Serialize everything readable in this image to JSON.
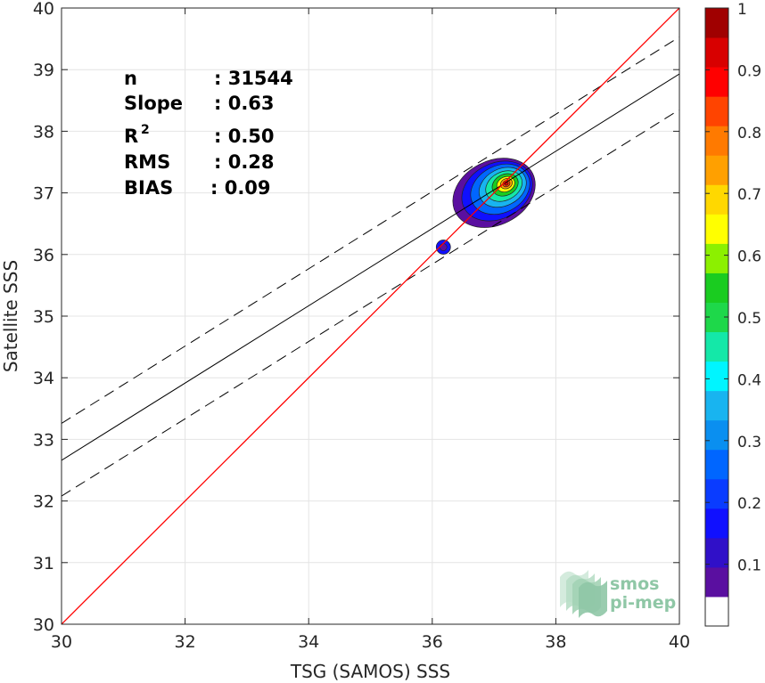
{
  "chart_data": {
    "type": "heatmap",
    "title": "",
    "xlabel": "TSG (SAMOS) SSS",
    "ylabel": "Satellite SSS",
    "xlim": [
      30,
      40
    ],
    "ylim": [
      30,
      40
    ],
    "x_ticks": [
      "30",
      "32",
      "34",
      "36",
      "38",
      "40"
    ],
    "y_ticks": [
      "30",
      "31",
      "32",
      "33",
      "34",
      "35",
      "36",
      "37",
      "38",
      "39",
      "40"
    ],
    "grid": true,
    "stats": [
      {
        "label": "n",
        "sup": "",
        "value": ": 31544"
      },
      {
        "label": "Slope",
        "sup": "",
        "value": ": 0.63"
      },
      {
        "label": "R",
        "sup": "2",
        "value": ": 0.50"
      },
      {
        "label": "RMS",
        "sup": "",
        "value": ": 0.28"
      },
      {
        "label": "BIAS",
        "sup": "",
        "value": ": 0.09"
      }
    ],
    "identity_line": {
      "x": [
        30,
        40
      ],
      "y": [
        30,
        40
      ],
      "color": "#ff0000"
    },
    "regression_line": {
      "x": [
        30,
        40
      ],
      "y": [
        32.66,
        38.93
      ],
      "color": "#000000"
    },
    "confidence_bounds": [
      {
        "x": [
          30,
          40
        ],
        "y": [
          33.26,
          39.53
        ],
        "style": "dashed"
      },
      {
        "x": [
          30,
          40
        ],
        "y": [
          32.08,
          38.35
        ],
        "style": "dashed"
      }
    ],
    "density_peak": {
      "x": 37.2,
      "y": 37.15,
      "value": 1.0
    },
    "density_contours": [
      {
        "level": 0.05,
        "cx": 37.0,
        "cy": 37.0,
        "rx": 0.7,
        "ry": 0.52,
        "rot": 0.6
      },
      {
        "level": 0.15,
        "cx": 37.05,
        "cy": 37.03,
        "rx": 0.6,
        "ry": 0.45,
        "rot": 0.6
      },
      {
        "level": 0.25,
        "cx": 37.1,
        "cy": 37.06,
        "rx": 0.5,
        "ry": 0.38,
        "rot": 0.6
      },
      {
        "level": 0.35,
        "cx": 37.14,
        "cy": 37.09,
        "rx": 0.4,
        "ry": 0.3,
        "rot": 0.6
      },
      {
        "level": 0.45,
        "cx": 37.16,
        "cy": 37.11,
        "rx": 0.31,
        "ry": 0.23,
        "rot": 0.6
      },
      {
        "level": 0.55,
        "cx": 37.18,
        "cy": 37.13,
        "rx": 0.22,
        "ry": 0.17,
        "rot": 0.6
      },
      {
        "level": 0.65,
        "cx": 37.19,
        "cy": 37.14,
        "rx": 0.15,
        "ry": 0.12,
        "rot": 0.6
      },
      {
        "level": 0.75,
        "cx": 37.2,
        "cy": 37.15,
        "rx": 0.1,
        "ry": 0.08,
        "rot": 0.6
      },
      {
        "level": 0.85,
        "cx": 37.2,
        "cy": 37.15,
        "rx": 0.06,
        "ry": 0.05,
        "rot": 0.6
      },
      {
        "level": 0.95,
        "cx": 37.2,
        "cy": 37.15,
        "rx": 0.03,
        "ry": 0.025,
        "rot": 0.6
      }
    ],
    "secondary_blob": {
      "x": 36.18,
      "y": 36.12,
      "level": 0.15
    },
    "colorbar": {
      "min": 0,
      "max": 1,
      "ticks": [
        "0.1",
        "0.2",
        "0.3",
        "0.4",
        "0.5",
        "0.6",
        "0.7",
        "0.8",
        "0.9",
        "1"
      ],
      "colors": [
        "#ffffff",
        "#5a0fa0",
        "#3010c8",
        "#1010ff",
        "#0a3cff",
        "#0066ff",
        "#0a8ff0",
        "#18b4f0",
        "#00f5ff",
        "#14e8a8",
        "#1ed84a",
        "#1acc20",
        "#8cf000",
        "#ffff00",
        "#ffd800",
        "#ffa000",
        "#ff7a00",
        "#ff4400",
        "#ff0000",
        "#d80000",
        "#a00000"
      ]
    },
    "logo": {
      "line1": "smos",
      "line2": "pi-mep"
    }
  }
}
